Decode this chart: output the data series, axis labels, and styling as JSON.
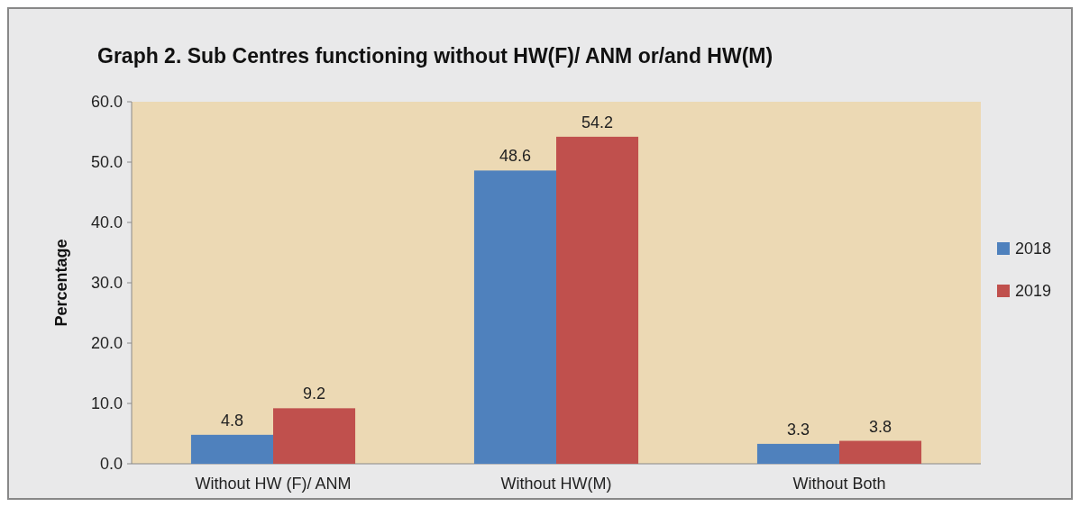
{
  "chart_data": {
    "type": "bar",
    "title": "Graph 2. Sub Centres functioning without HW(F)/ ANM or/and HW(M)",
    "ylabel": "Percentage",
    "categories": [
      "Without HW (F)/ ANM",
      "Without HW(M)",
      "Without Both"
    ],
    "series": [
      {
        "name": "2018",
        "color": "#4f81bd",
        "values": [
          4.8,
          48.6,
          3.3
        ]
      },
      {
        "name": "2019",
        "color": "#c0504d",
        "values": [
          9.2,
          54.2,
          3.8
        ]
      }
    ],
    "ylim": [
      0,
      60
    ],
    "yticks": [
      {
        "value": 0,
        "label": "0.0"
      },
      {
        "value": 10,
        "label": "10.0"
      },
      {
        "value": 20,
        "label": "20.0"
      },
      {
        "value": 30,
        "label": "30.0"
      },
      {
        "value": 40,
        "label": "40.0"
      },
      {
        "value": 50,
        "label": "50.0"
      },
      {
        "value": 60,
        "label": "60.0"
      }
    ],
    "data_labels": true,
    "legend": "right",
    "grid": false
  }
}
